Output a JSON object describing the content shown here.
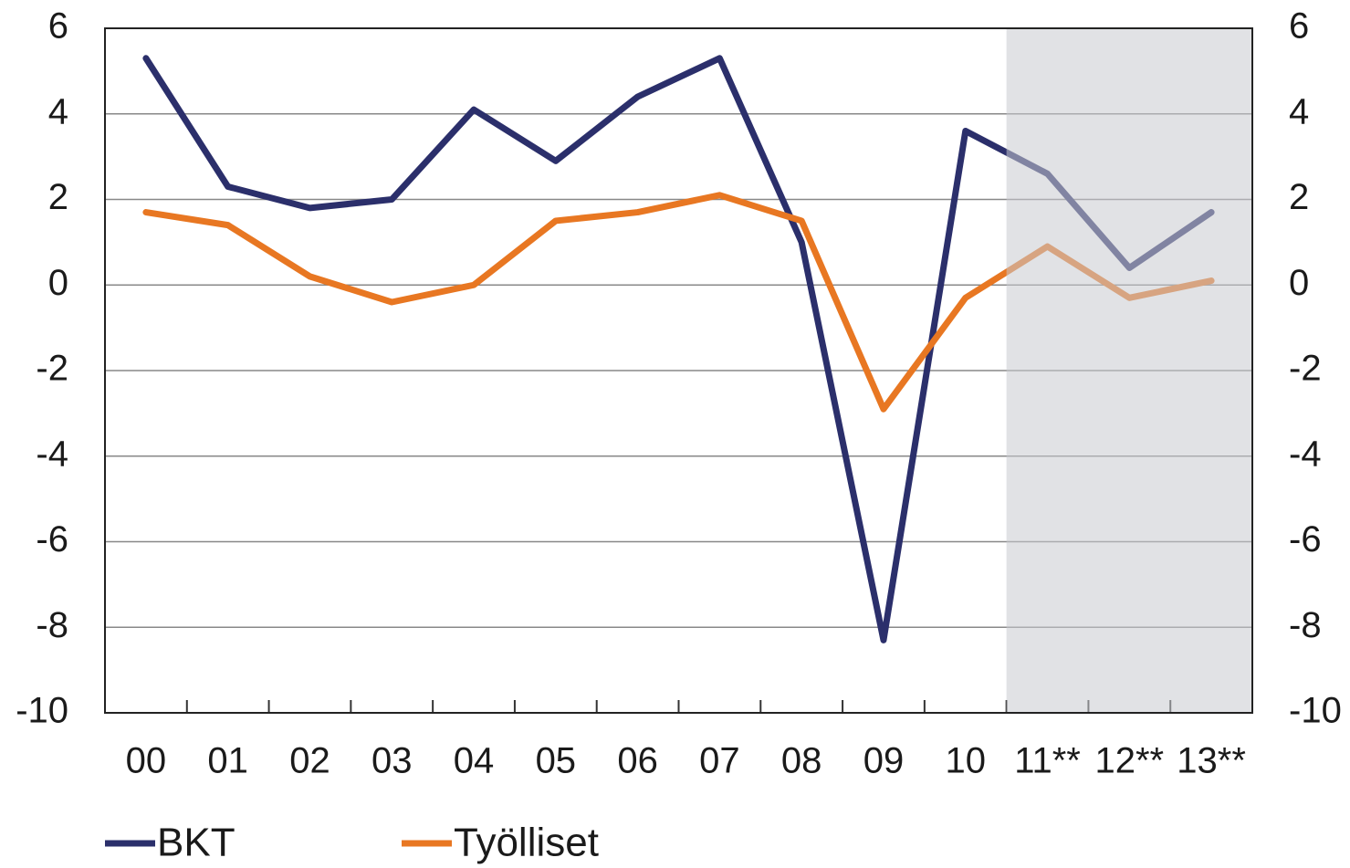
{
  "chart_data": {
    "type": "line",
    "categories": [
      "00",
      "01",
      "02",
      "03",
      "04",
      "05",
      "06",
      "07",
      "08",
      "09",
      "10",
      "11**",
      "12**",
      "13**"
    ],
    "series": [
      {
        "name": "BKT",
        "color": "#2b2f6b",
        "values": [
          5.3,
          2.3,
          1.8,
          2.0,
          4.1,
          2.9,
          4.4,
          5.3,
          1.0,
          -8.3,
          3.6,
          2.6,
          0.4,
          1.7
        ]
      },
      {
        "name": "Työlliset",
        "color": "#e87722",
        "values": [
          1.7,
          1.4,
          0.2,
          -0.4,
          0.0,
          1.5,
          1.7,
          2.1,
          1.5,
          -2.9,
          -0.3,
          0.9,
          -0.3,
          0.1
        ]
      }
    ],
    "ylim": [
      -10,
      6
    ],
    "yticks": [
      -10,
      -8,
      -6,
      -4,
      -2,
      0,
      2,
      4,
      6
    ],
    "y2lim": [
      -10,
      6
    ],
    "y2ticks": [
      -10,
      -8,
      -6,
      -4,
      -2,
      0,
      2,
      4,
      6
    ],
    "grid": true,
    "shade_start": "11**",
    "legend": "bottom"
  }
}
